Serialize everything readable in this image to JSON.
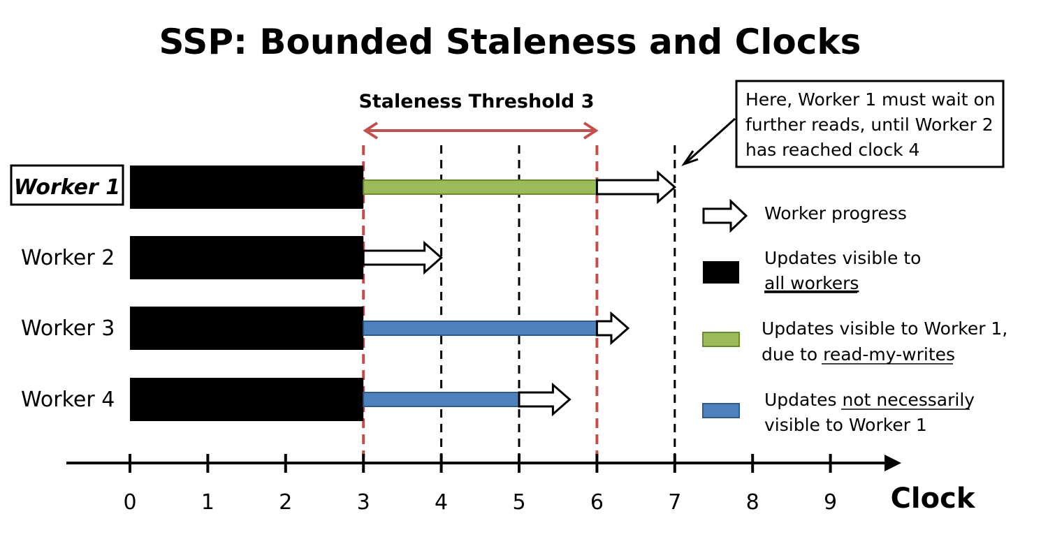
{
  "title": "SSP: Bounded Staleness and Clocks",
  "staleness_label": "Staleness Threshold 3",
  "callout": {
    "lines": [
      "Here, Worker 1 must wait on",
      "further reads, until Worker 2",
      "has reached clock 4"
    ]
  },
  "workers": [
    {
      "label": "Worker 1",
      "highlighted": true,
      "visible_to_all_until": 3,
      "extra_bar": {
        "kind": "green",
        "from": 3,
        "to": 6
      },
      "progress_to": 7
    },
    {
      "label": "Worker 2",
      "highlighted": false,
      "visible_to_all_until": 3,
      "extra_bar": null,
      "progress_to": 4
    },
    {
      "label": "Worker 3",
      "highlighted": false,
      "visible_to_all_until": 3,
      "extra_bar": {
        "kind": "blue",
        "from": 3,
        "to": 6
      },
      "progress_to": 6.4
    },
    {
      "label": "Worker 4",
      "highlighted": false,
      "visible_to_all_until": 3,
      "extra_bar": {
        "kind": "blue",
        "from": 3,
        "to": 5
      },
      "progress_to": 5.65
    }
  ],
  "axis": {
    "label": "Clock",
    "ticks": [
      "0",
      "1",
      "2",
      "3",
      "4",
      "5",
      "6",
      "7",
      "8",
      "9"
    ]
  },
  "threshold_lines": [
    3,
    6
  ],
  "dashed_lines": [
    4,
    5,
    7
  ],
  "legend": [
    {
      "kind": "arrow",
      "text": "Worker progress",
      "underline": null
    },
    {
      "kind": "black",
      "line1": "Updates visible to",
      "line2_underline": "all workers"
    },
    {
      "kind": "green",
      "line1": "Updates visible to Worker 1,",
      "line2_prefix": "due to ",
      "line2_underline": "read-my-writes"
    },
    {
      "kind": "blue",
      "line1_prefix": "Updates ",
      "line1_underline": "not necessarily",
      "line2": "visible to Worker 1"
    }
  ],
  "colors": {
    "green_fill": "#9bbb59",
    "green_stroke": "#6a8a30",
    "blue_fill": "#4f81bd",
    "blue_stroke": "#2e5a8e",
    "threshold": "#c0504d",
    "black": "#000000"
  }
}
